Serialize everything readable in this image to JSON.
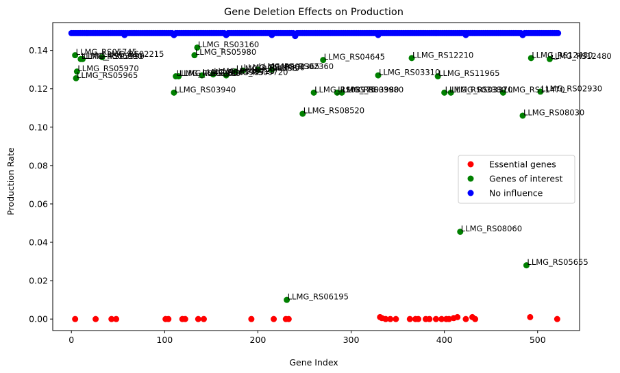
{
  "chart_data": {
    "type": "scatter",
    "title": "Gene Deletion Effects on Production",
    "xlabel": "Gene Index",
    "ylabel": "Production Rate",
    "xlim": [
      -20,
      545
    ],
    "ylim": [
      -0.006,
      0.1545
    ],
    "xticks": [
      0,
      100,
      200,
      300,
      400,
      500
    ],
    "yticks": [
      0.0,
      0.02,
      0.04,
      0.06,
      0.08,
      0.1,
      0.12,
      0.14
    ],
    "ytick_labels": [
      "0.00",
      "0.02",
      "0.04",
      "0.06",
      "0.08",
      "0.10",
      "0.12",
      "0.14"
    ],
    "grid": false,
    "legend_position": "center-right",
    "series": [
      {
        "name": "Essential genes",
        "color": "#ff0000",
        "x": [
          4,
          26,
          43,
          48,
          101,
          104,
          119,
          122,
          136,
          142,
          193,
          217,
          230,
          233,
          331,
          333,
          337,
          342,
          348,
          363,
          369,
          372,
          380,
          384,
          391,
          397,
          402,
          405,
          410,
          414,
          423,
          430,
          433,
          492,
          521
        ],
        "y": [
          0.0,
          0.0,
          0.0,
          0.0,
          0.0,
          0.0,
          0.0,
          0.0,
          0.0,
          0.0,
          0.0,
          0.0,
          0.0,
          0.0,
          0.001,
          0.0005,
          0.0,
          0.0,
          0.0,
          0.0,
          0.0,
          0.0,
          0.0,
          0.0,
          0.0,
          0.0,
          0.0,
          0.0,
          0.0005,
          0.001,
          0.0,
          0.001,
          0.0,
          0.001,
          0.0
        ]
      },
      {
        "name": "Genes of interest",
        "color": "#008000",
        "points": [
          {
            "x": 4,
            "y": 0.1375,
            "label": "LLMG_RS05745"
          },
          {
            "x": 6,
            "y": 0.129,
            "label": "LLMG_RS05970"
          },
          {
            "x": 5,
            "y": 0.1255,
            "label": "LLMG_RS05965"
          },
          {
            "x": 10,
            "y": 0.1355,
            "label": "LLMG_RS05990"
          },
          {
            "x": 12,
            "y": 0.1355,
            "label": "LLMG_RS05990"
          },
          {
            "x": 33,
            "y": 0.1365,
            "label": "LLMG_RS02215"
          },
          {
            "x": 110,
            "y": 0.118,
            "label": "LLMG_RS03940"
          },
          {
            "x": 112,
            "y": 0.1265,
            "label": "LLMG_RS05985"
          },
          {
            "x": 115,
            "y": 0.1265,
            "label": "LLMG_RS05980"
          },
          {
            "x": 132,
            "y": 0.1375,
            "label": "LLMG_RS05980"
          },
          {
            "x": 135,
            "y": 0.1415,
            "label": "LLMG_RS03160"
          },
          {
            "x": 140,
            "y": 0.127,
            "label": "LLMG_RS05985"
          },
          {
            "x": 152,
            "y": 0.1275,
            "label": "LLMG_RS09725"
          },
          {
            "x": 166,
            "y": 0.127,
            "label": "LLMG_RS09720"
          },
          {
            "x": 176,
            "y": 0.129,
            "label": "LLMG_RS00855"
          },
          {
            "x": 184,
            "y": 0.1295,
            "label": "LLMG_RS00860"
          },
          {
            "x": 200,
            "y": 0.13,
            "label": "LLMG_RS02365"
          },
          {
            "x": 215,
            "y": 0.13,
            "label": "LLMG_RS02360"
          },
          {
            "x": 231,
            "y": 0.01,
            "label": "LLMG_RS06195"
          },
          {
            "x": 248,
            "y": 0.107,
            "label": "LLMG_RS08520"
          },
          {
            "x": 260,
            "y": 0.118,
            "label": "LLMG_RS03975"
          },
          {
            "x": 270,
            "y": 0.135,
            "label": "LLMG_RS04645"
          },
          {
            "x": 285,
            "y": 0.118,
            "label": "LLMG_RS03980"
          },
          {
            "x": 290,
            "y": 0.118,
            "label": "LLMG_RS03980"
          },
          {
            "x": 329,
            "y": 0.127,
            "label": "LLMG_RS03310"
          },
          {
            "x": 365,
            "y": 0.136,
            "label": "LLMG_RS12210"
          },
          {
            "x": 393,
            "y": 0.1265,
            "label": "LLMG_RS11965"
          },
          {
            "x": 400,
            "y": 0.118,
            "label": "LLMG_RS03380"
          },
          {
            "x": 407,
            "y": 0.118,
            "label": "LLMG_RS03370"
          },
          {
            "x": 417,
            "y": 0.0455,
            "label": "LLMG_RS08060"
          },
          {
            "x": 463,
            "y": 0.118,
            "label": "LLMG_RS11470"
          },
          {
            "x": 484,
            "y": 0.106,
            "label": "LLMG_RS08030"
          },
          {
            "x": 488,
            "y": 0.028,
            "label": "LLMG_RS05655"
          },
          {
            "x": 493,
            "y": 0.136,
            "label": "LLMG_RS12480"
          },
          {
            "x": 503,
            "y": 0.1185,
            "label": "LLMG_RS02930"
          },
          {
            "x": 513,
            "y": 0.1355,
            "label": "LLMG_RS12480"
          }
        ]
      },
      {
        "name": "No influence",
        "color": "#0000ff",
        "x_range": [
          0,
          522
        ],
        "x_step": 2,
        "y_value": 0.149,
        "dips": [
          {
            "x": 57,
            "y": 0.148
          },
          {
            "x": 110,
            "y": 0.148
          },
          {
            "x": 166,
            "y": 0.148
          },
          {
            "x": 215,
            "y": 0.148
          },
          {
            "x": 240,
            "y": 0.1475
          },
          {
            "x": 329,
            "y": 0.148
          },
          {
            "x": 423,
            "y": 0.148
          },
          {
            "x": 484,
            "y": 0.148
          }
        ]
      }
    ],
    "legend": [
      "Essential genes",
      "Genes of interest",
      "No influence"
    ]
  }
}
